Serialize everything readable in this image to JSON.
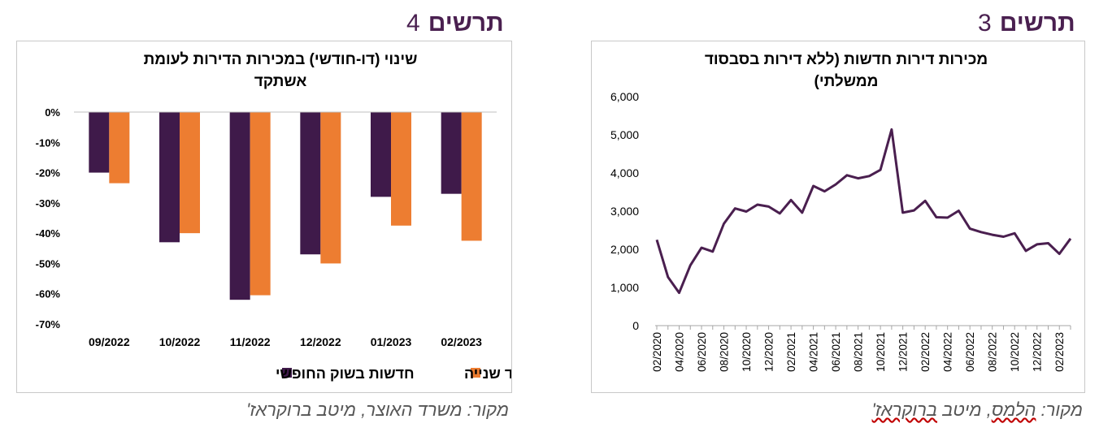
{
  "left_figure": {
    "heading_word": "תרשים",
    "heading_number": "4",
    "source": "מקור: משרד האוצר, מיטב ברוקראז'",
    "chart_data": {
      "type": "bar",
      "title_line1": "שינוי (דו-חודשי) במכירות הדירות לעומת",
      "title_line2": "אשתקד",
      "categories": [
        "09/2022",
        "10/2022",
        "11/2022",
        "12/2022",
        "01/2023",
        "02/2023"
      ],
      "series": [
        {
          "name": "חדשות בשוק החופשי",
          "color": "#3f1a4a",
          "values": [
            -20,
            -43,
            -62,
            -47,
            -28,
            -27
          ]
        },
        {
          "name": "יד שנייה",
          "color": "#ed7d31",
          "values": [
            -23.5,
            -40,
            -60.5,
            -50,
            -37.5,
            -42.5
          ]
        }
      ],
      "ylim": [
        -70,
        0
      ],
      "yticks": [
        0,
        -10,
        -20,
        -30,
        -40,
        -50,
        -60,
        -70
      ],
      "ytick_labels": [
        "0%",
        "-10%",
        "-20%",
        "-30%",
        "-40%",
        "-50%",
        "-60%",
        "-70%"
      ],
      "legend_position": "bottom",
      "grid": false
    }
  },
  "right_figure": {
    "heading_word": "תרשים",
    "heading_number": "3",
    "source_prefix": "מקור: ",
    "source_underlined": "הלמס",
    "source_middle": ", מיטב ",
    "source_underlined2": "ברוקראז'",
    "chart_data": {
      "type": "line",
      "title_line1": "מכירות דירות חדשות (ללא דירות בסבסוד",
      "title_line2": "ממשלתי)",
      "color": "#4a1f4f",
      "x_labels": [
        "02/2020",
        "04/2020",
        "06/2020",
        "08/2020",
        "10/2020",
        "12/2020",
        "02/2021",
        "04/2021",
        "06/2021",
        "08/2021",
        "10/2021",
        "12/2021",
        "02/2022",
        "04/2022",
        "06/2022",
        "08/2022",
        "10/2022",
        "12/2022",
        "02/2023"
      ],
      "values": [
        2250,
        1270,
        860,
        1580,
        2040,
        1940,
        2670,
        3070,
        2990,
        3170,
        3120,
        2940,
        3290,
        2960,
        3660,
        3520,
        3700,
        3940,
        3860,
        3920,
        4080,
        5140,
        2960,
        3020,
        3270,
        2840,
        2830,
        3010,
        2540,
        2450,
        2380,
        2330,
        2420,
        1960,
        2130,
        2160,
        1880,
        2280
      ],
      "ylim": [
        0,
        6000
      ],
      "yticks": [
        0,
        1000,
        2000,
        3000,
        4000,
        5000,
        6000
      ],
      "ytick_labels": [
        "0",
        "1,000",
        "2,000",
        "3,000",
        "4,000",
        "5,000",
        "6,000"
      ],
      "grid": false
    }
  }
}
